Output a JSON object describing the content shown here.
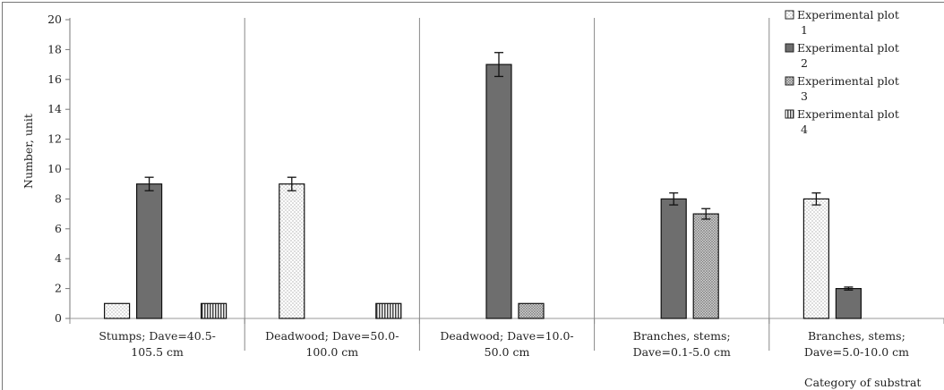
{
  "chart_data": {
    "type": "bar",
    "title": "",
    "ylabel": "Number, unit",
    "xlabel": "Category of substrat",
    "ylim": [
      0,
      20
    ],
    "yticks": [
      0,
      2,
      4,
      6,
      8,
      10,
      12,
      14,
      16,
      18,
      20
    ],
    "grid": false,
    "legend_position": "top-right",
    "categories": [
      [
        "Stumps; Dave=40.5-",
        "105.5 cm"
      ],
      [
        "Deadwood; Dave=50.0-",
        "100.0 cm"
      ],
      [
        "Deadwood; Dave=10.0-",
        "50.0 cm"
      ],
      [
        "Branches, stems;",
        "Dave=0.1-5.0 cm"
      ],
      [
        "Branches, stems;",
        "Dave=5.0-10.0 cm"
      ]
    ],
    "series": [
      {
        "name": [
          "Experimental plot",
          "1"
        ],
        "pattern": "dots",
        "color": "#ffffff",
        "values": [
          1,
          9,
          0,
          0,
          8
        ],
        "errors": [
          0,
          0.45,
          0,
          0,
          0.4
        ]
      },
      {
        "name": [
          "Experimental plot",
          "2"
        ],
        "pattern": "solid",
        "color": "#6e6e6e",
        "values": [
          9,
          0,
          17,
          8,
          2
        ],
        "errors": [
          0.45,
          0,
          0.8,
          0.4,
          0.1
        ]
      },
      {
        "name": [
          "Experimental plot",
          "3"
        ],
        "pattern": "crosshatch",
        "color": "#cccccc",
        "values": [
          0,
          0,
          1,
          7,
          0
        ],
        "errors": [
          0,
          0,
          0,
          0.35,
          0
        ]
      },
      {
        "name": [
          "Experimental plot",
          "4"
        ],
        "pattern": "vstripes",
        "color": "#ffffff",
        "values": [
          1,
          1,
          0,
          0,
          0
        ],
        "errors": [
          0,
          0,
          0,
          0,
          0
        ]
      }
    ]
  }
}
